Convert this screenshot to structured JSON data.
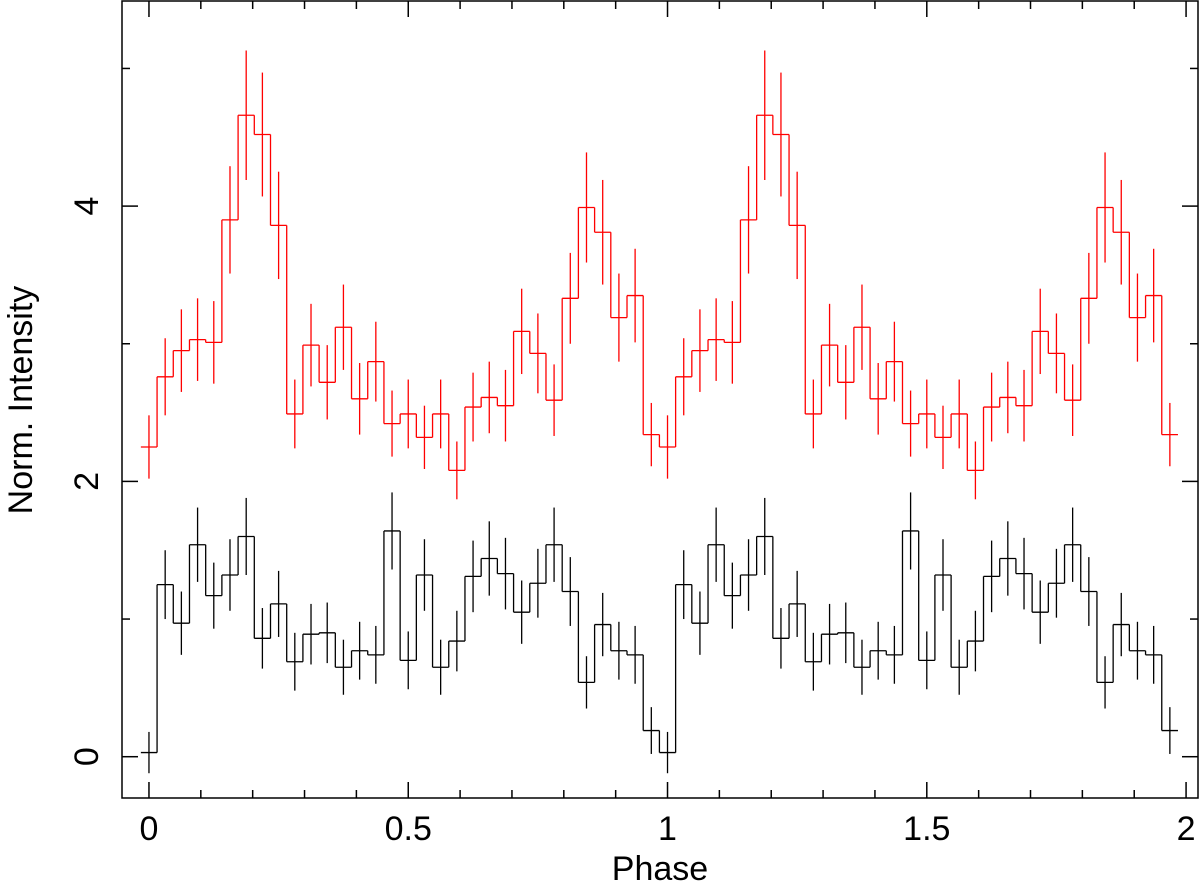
{
  "chart_data": {
    "type": "step",
    "xlabel": "Phase",
    "ylabel": "Norm. Intensity",
    "xlim": [
      -0.052,
      2.023
    ],
    "ylim": [
      -0.3,
      5.49
    ],
    "xticks": [
      0,
      0.5,
      1,
      1.5,
      2
    ],
    "xminorticks": [
      0.1,
      0.2,
      0.3,
      0.4,
      0.6,
      0.7,
      0.8,
      0.9,
      1.1,
      1.2,
      1.3,
      1.4,
      1.6,
      1.7,
      1.8,
      1.9
    ],
    "yticks": [
      0,
      2,
      4
    ],
    "yminorticks": [
      1,
      3,
      5
    ],
    "bin_width": 0.03125,
    "x": [
      0,
      0.03125,
      0.0625,
      0.09375,
      0.125,
      0.15625,
      0.1875,
      0.21875,
      0.25,
      0.28125,
      0.3125,
      0.34375,
      0.375,
      0.40625,
      0.4375,
      0.46875,
      0.5,
      0.53125,
      0.5625,
      0.59375,
      0.625,
      0.65625,
      0.6875,
      0.71875,
      0.75,
      0.78125,
      0.8125,
      0.84375,
      0.875,
      0.90625,
      0.9375,
      0.96875,
      1,
      1.03125,
      1.0625,
      1.09375,
      1.125,
      1.15625,
      1.1875,
      1.21875,
      1.25,
      1.28125,
      1.3125,
      1.34375,
      1.375,
      1.40625,
      1.4375,
      1.46875,
      1.5,
      1.53125,
      1.5625,
      1.59375,
      1.625,
      1.65625,
      1.6875,
      1.71875,
      1.75,
      1.78125,
      1.8125,
      1.84375,
      1.875,
      1.90625,
      1.9375,
      1.96875
    ],
    "series": [
      {
        "color": "#ff0000",
        "values": [
          2.25,
          2.76,
          2.95,
          3.03,
          3.01,
          3.9,
          4.66,
          4.52,
          3.86,
          2.49,
          2.99,
          2.72,
          3.12,
          2.6,
          2.87,
          2.42,
          2.49,
          2.32,
          2.49,
          2.08,
          2.54,
          2.61,
          2.55,
          3.09,
          2.93,
          2.59,
          3.33,
          3.99,
          3.81,
          3.19,
          3.35,
          2.34,
          2.25,
          2.76,
          2.95,
          3.03,
          3.01,
          3.9,
          4.66,
          4.52,
          3.86,
          2.49,
          2.99,
          2.72,
          3.12,
          2.6,
          2.87,
          2.42,
          2.49,
          2.32,
          2.49,
          2.08,
          2.54,
          2.61,
          2.55,
          3.09,
          2.93,
          2.59,
          3.33,
          3.99,
          3.81,
          3.19,
          3.35,
          2.34
        ],
        "errors": [
          0.23,
          0.28,
          0.3,
          0.3,
          0.3,
          0.39,
          0.47,
          0.45,
          0.39,
          0.25,
          0.3,
          0.27,
          0.31,
          0.26,
          0.29,
          0.24,
          0.25,
          0.23,
          0.25,
          0.21,
          0.25,
          0.26,
          0.26,
          0.31,
          0.29,
          0.26,
          0.33,
          0.4,
          0.38,
          0.32,
          0.34,
          0.23,
          0.23,
          0.28,
          0.3,
          0.3,
          0.3,
          0.39,
          0.47,
          0.45,
          0.39,
          0.25,
          0.3,
          0.27,
          0.31,
          0.26,
          0.29,
          0.24,
          0.25,
          0.23,
          0.25,
          0.21,
          0.25,
          0.26,
          0.26,
          0.31,
          0.29,
          0.26,
          0.33,
          0.4,
          0.38,
          0.32,
          0.34,
          0.23
        ]
      },
      {
        "color": "#000000",
        "values": [
          0.03,
          1.25,
          0.97,
          1.54,
          1.17,
          1.32,
          1.6,
          0.86,
          1.11,
          0.69,
          0.89,
          0.9,
          0.65,
          0.77,
          0.74,
          1.64,
          0.7,
          1.32,
          0.65,
          0.84,
          1.31,
          1.44,
          1.33,
          1.05,
          1.26,
          1.54,
          1.2,
          0.54,
          0.96,
          0.77,
          0.74,
          0.19,
          0.03,
          1.25,
          0.97,
          1.54,
          1.17,
          1.32,
          1.6,
          0.86,
          1.11,
          0.69,
          0.89,
          0.9,
          0.65,
          0.77,
          0.74,
          1.64,
          0.7,
          1.32,
          0.65,
          0.84,
          1.31,
          1.44,
          1.33,
          1.05,
          1.26,
          1.54,
          1.2,
          0.54,
          0.96,
          0.77,
          0.74,
          0.19
        ],
        "errors": [
          0.15,
          0.25,
          0.23,
          0.27,
          0.24,
          0.26,
          0.28,
          0.22,
          0.24,
          0.21,
          0.22,
          0.22,
          0.2,
          0.21,
          0.21,
          0.28,
          0.21,
          0.26,
          0.2,
          0.22,
          0.26,
          0.27,
          0.26,
          0.23,
          0.25,
          0.27,
          0.25,
          0.19,
          0.23,
          0.21,
          0.21,
          0.17,
          0.15,
          0.25,
          0.23,
          0.27,
          0.24,
          0.26,
          0.28,
          0.22,
          0.24,
          0.21,
          0.22,
          0.22,
          0.2,
          0.21,
          0.21,
          0.28,
          0.21,
          0.26,
          0.2,
          0.22,
          0.26,
          0.27,
          0.26,
          0.23,
          0.25,
          0.27,
          0.25,
          0.19,
          0.23,
          0.21,
          0.21,
          0.17
        ]
      }
    ]
  }
}
